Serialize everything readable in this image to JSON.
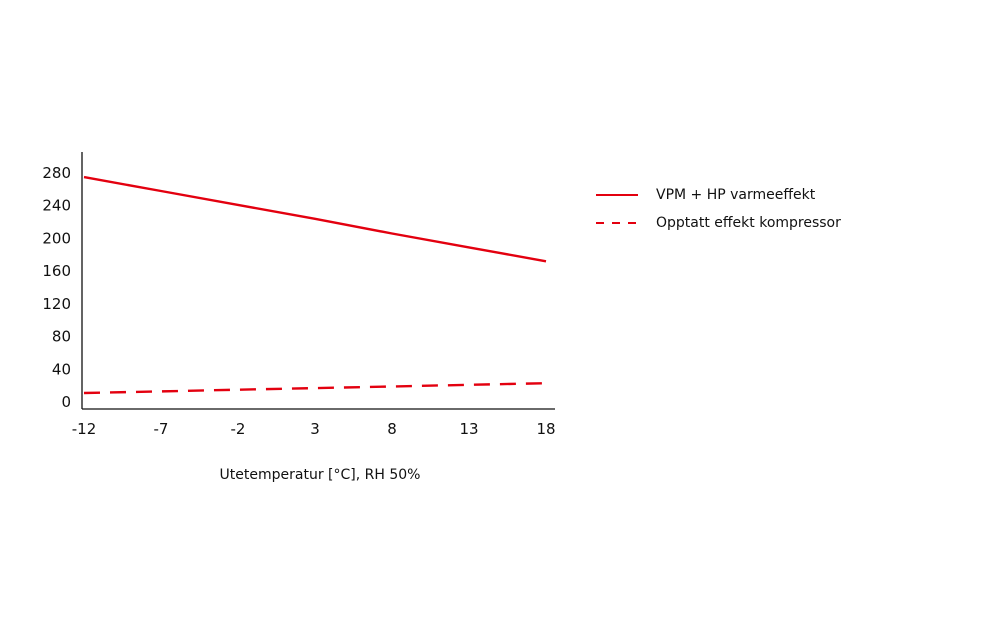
{
  "chart_data": {
    "type": "line",
    "title": "",
    "xlabel": "Utetemperatur [°C], RH 50%",
    "ylabel": "",
    "x": [
      -12,
      -7,
      -2,
      3,
      8,
      13,
      18
    ],
    "x_tick_labels": [
      "-12",
      "-7",
      "-2",
      "3",
      "8",
      "13",
      "18"
    ],
    "y_ticks": [
      0,
      40,
      80,
      120,
      160,
      200,
      240,
      280
    ],
    "y_tick_labels": [
      "0",
      "40",
      "80",
      "120",
      "160",
      "200",
      "240",
      "280"
    ],
    "xlim": [
      -12,
      18
    ],
    "ylim": [
      0,
      280
    ],
    "grid": false,
    "legend_position": "right",
    "series": [
      {
        "name": "VPM + HP varmeeffekt",
        "style": "solid",
        "color": "#e3000f",
        "values": [
          275,
          258,
          241,
          224,
          206,
          189,
          172
        ]
      },
      {
        "name": "Opptatt effekt kompressor",
        "style": "dashed",
        "color": "#e3000f",
        "values": [
          11,
          13,
          15,
          17,
          19,
          21,
          23
        ]
      }
    ]
  }
}
